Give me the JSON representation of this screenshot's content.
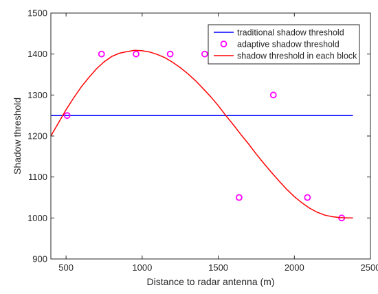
{
  "chart_data": {
    "type": "line",
    "xlabel": "Distance to radar antenna (m)",
    "ylabel": "Shadow threshold",
    "xlim": [
      400,
      2500
    ],
    "ylim": [
      900,
      1500
    ],
    "xticks": [
      500,
      1000,
      1500,
      2000,
      2500
    ],
    "yticks": [
      900,
      1000,
      1100,
      1200,
      1300,
      1400,
      1500
    ],
    "grid": false,
    "legend_position": "top-right",
    "series": [
      {
        "name": "traditional shadow threshold",
        "kind": "line",
        "color": "#0000ff",
        "x": [
          400,
          2385
        ],
        "y": [
          1250,
          1250
        ]
      },
      {
        "name": "adaptive shadow threshold",
        "kind": "scatter",
        "marker": "circle",
        "color": "#ff00ff",
        "x": [
          507,
          733,
          960,
          1184,
          1411,
          1637,
          1862,
          2086,
          2311
        ],
        "y": [
          1250,
          1400,
          1400,
          1400,
          1400,
          1050,
          1300,
          1050,
          1000
        ]
      },
      {
        "name": "shadow threshold in each block",
        "kind": "line",
        "color": "#ff0000",
        "x": [
          400,
          450,
          500,
          550,
          600,
          650,
          700,
          750,
          800,
          850,
          900,
          950,
          1000,
          1050,
          1100,
          1150,
          1200,
          1250,
          1300,
          1350,
          1400,
          1450,
          1500,
          1550,
          1600,
          1650,
          1700,
          1750,
          1800,
          1850,
          1900,
          1950,
          2000,
          2050,
          2100,
          2150,
          2200,
          2250,
          2300,
          2350,
          2385
        ],
        "y": [
          1200,
          1232,
          1264,
          1293,
          1320,
          1343,
          1364,
          1381,
          1394,
          1402,
          1406,
          1409,
          1408,
          1405,
          1399,
          1391,
          1380,
          1367,
          1352,
          1335,
          1316,
          1296,
          1274,
          1250,
          1227,
          1203,
          1180,
          1156,
          1133,
          1111,
          1090,
          1070,
          1052,
          1037,
          1024,
          1014,
          1007,
          1003,
          1001,
          1000,
          1000
        ]
      }
    ]
  }
}
